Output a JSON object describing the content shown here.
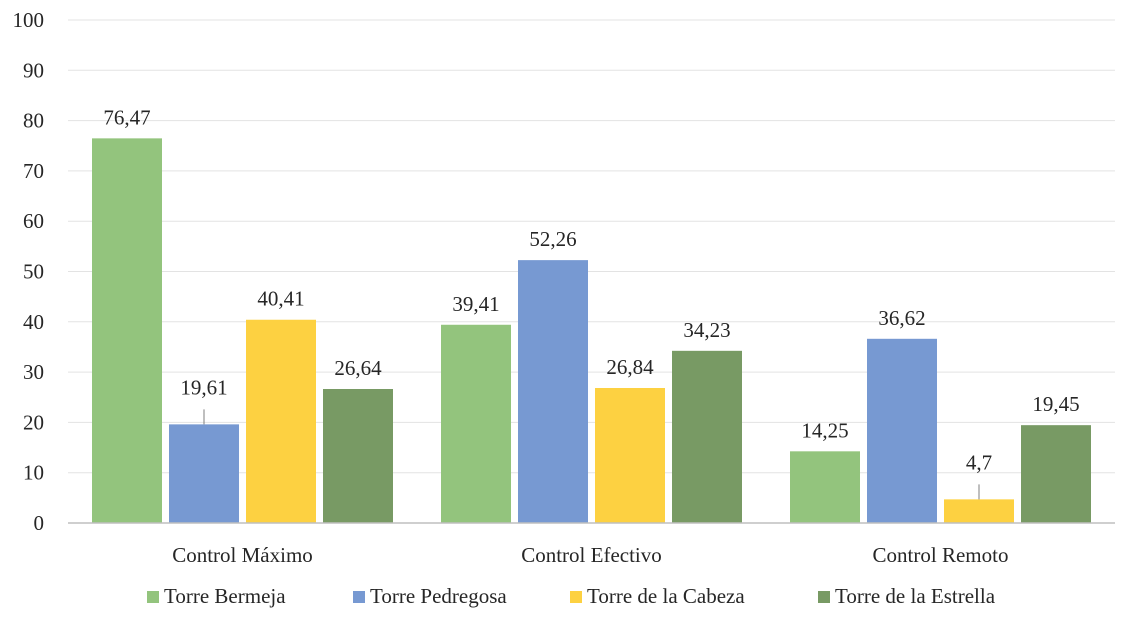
{
  "chart_data": {
    "type": "bar",
    "categories": [
      "Control Máximo",
      "Control Efectivo",
      "Control Remoto"
    ],
    "series": [
      {
        "name": "Torre Bermeja",
        "values": [
          76.47,
          39.41,
          14.25
        ],
        "labels": [
          "76,47",
          "39,41",
          "14,25"
        ],
        "color": "#93c47d"
      },
      {
        "name": "Torre Pedregosa",
        "values": [
          19.61,
          52.26,
          36.62
        ],
        "labels": [
          "19,61",
          "52,26",
          "36,62"
        ],
        "color": "#7799d2"
      },
      {
        "name": "Torre de la Cabeza",
        "values": [
          40.41,
          26.84,
          4.7
        ],
        "labels": [
          "40,41",
          "26,84",
          "4,7"
        ],
        "color": "#fdd141"
      },
      {
        "name": "Torre de la Estrella",
        "values": [
          26.64,
          34.23,
          19.45
        ],
        "labels": [
          "26,64",
          "34,23",
          "19,45"
        ],
        "color": "#789a64"
      }
    ],
    "ylim": [
      0,
      100
    ],
    "yticks": [
      "0",
      "10",
      "20",
      "30",
      "40",
      "50",
      "60",
      "70",
      "80",
      "90",
      "100"
    ],
    "grid": true,
    "legend_position": "bottom"
  }
}
